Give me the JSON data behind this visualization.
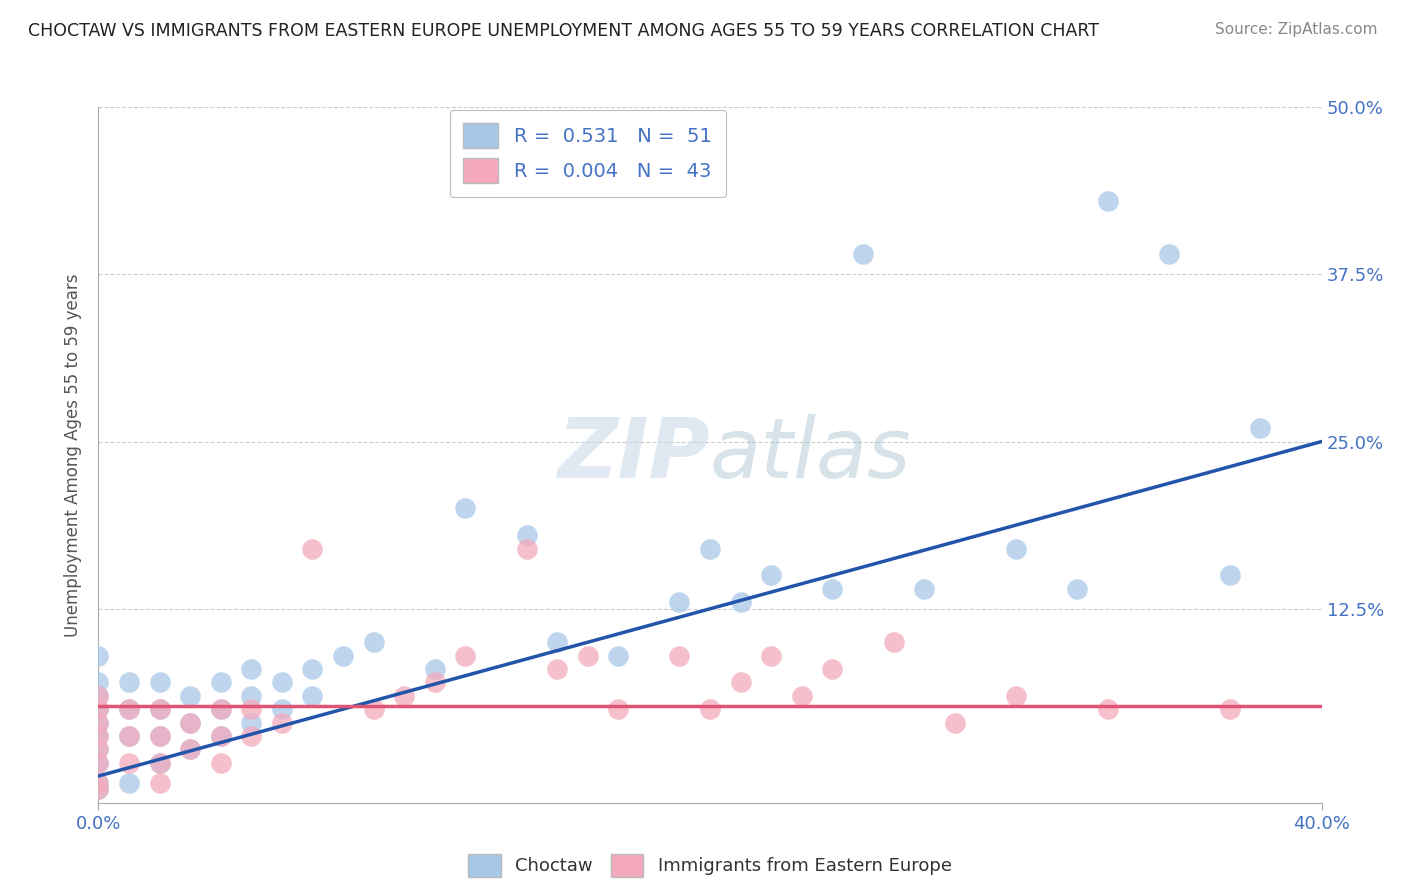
{
  "title": "CHOCTAW VS IMMIGRANTS FROM EASTERN EUROPE UNEMPLOYMENT AMONG AGES 55 TO 59 YEARS CORRELATION CHART",
  "source": "Source: ZipAtlas.com",
  "ylabel": "Unemployment Among Ages 55 to 59 years",
  "xlim": [
    0.0,
    0.4
  ],
  "ylim": [
    -0.02,
    0.5
  ],
  "yticks": [
    0.0,
    0.125,
    0.25,
    0.375,
    0.5
  ],
  "ytick_labels": [
    "",
    "12.5%",
    "25.0%",
    "37.5%",
    "50.0%"
  ],
  "r_choctaw": 0.531,
  "n_choctaw": 51,
  "r_eastern": 0.004,
  "n_eastern": 43,
  "choctaw_color": "#A8C8E8",
  "eastern_color": "#F4AABC",
  "choctaw_line_color": "#2255AA",
  "eastern_line_color": "#E05575",
  "watermark_zip": "ZIP",
  "watermark_atlas": "atlas",
  "background_color": "#ffffff",
  "choctaw_points_x": [
    0.0,
    0.0,
    0.0,
    0.0,
    0.0,
    0.0,
    0.0,
    0.0,
    0.0,
    0.0,
    0.01,
    0.01,
    0.01,
    0.01,
    0.02,
    0.02,
    0.02,
    0.02,
    0.03,
    0.03,
    0.03,
    0.04,
    0.04,
    0.04,
    0.05,
    0.05,
    0.05,
    0.06,
    0.06,
    0.07,
    0.07,
    0.08,
    0.09,
    0.11,
    0.12,
    0.14,
    0.15,
    0.17,
    0.19,
    0.2,
    0.21,
    0.22,
    0.24,
    0.25,
    0.27,
    0.3,
    0.32,
    0.33,
    0.35,
    0.37,
    0.38
  ],
  "choctaw_points_y": [
    0.09,
    0.07,
    0.06,
    0.05,
    0.04,
    0.03,
    0.02,
    0.01,
    -0.005,
    -0.01,
    0.07,
    0.05,
    0.03,
    -0.005,
    0.07,
    0.05,
    0.03,
    0.01,
    0.06,
    0.04,
    0.02,
    0.07,
    0.05,
    0.03,
    0.08,
    0.06,
    0.04,
    0.07,
    0.05,
    0.08,
    0.06,
    0.09,
    0.1,
    0.08,
    0.2,
    0.18,
    0.1,
    0.09,
    0.13,
    0.17,
    0.13,
    0.15,
    0.14,
    0.39,
    0.14,
    0.17,
    0.14,
    0.43,
    0.39,
    0.15,
    0.26
  ],
  "eastern_points_x": [
    0.0,
    0.0,
    0.0,
    0.0,
    0.0,
    0.0,
    0.0,
    0.0,
    0.01,
    0.01,
    0.01,
    0.02,
    0.02,
    0.02,
    0.02,
    0.03,
    0.03,
    0.04,
    0.04,
    0.04,
    0.05,
    0.05,
    0.06,
    0.07,
    0.09,
    0.1,
    0.11,
    0.12,
    0.14,
    0.15,
    0.16,
    0.17,
    0.19,
    0.2,
    0.21,
    0.22,
    0.23,
    0.24,
    0.26,
    0.28,
    0.3,
    0.33,
    0.37
  ],
  "eastern_points_y": [
    0.06,
    0.05,
    0.04,
    0.03,
    0.02,
    0.01,
    -0.005,
    -0.01,
    0.05,
    0.03,
    0.01,
    0.05,
    0.03,
    0.01,
    -0.005,
    0.04,
    0.02,
    0.05,
    0.03,
    0.01,
    0.05,
    0.03,
    0.04,
    0.17,
    0.05,
    0.06,
    0.07,
    0.09,
    0.17,
    0.08,
    0.09,
    0.05,
    0.09,
    0.05,
    0.07,
    0.09,
    0.06,
    0.08,
    0.1,
    0.04,
    0.06,
    0.05,
    0.05
  ],
  "choctaw_line_y0": 0.0,
  "choctaw_line_y1": 0.25,
  "eastern_line_y": 0.052
}
